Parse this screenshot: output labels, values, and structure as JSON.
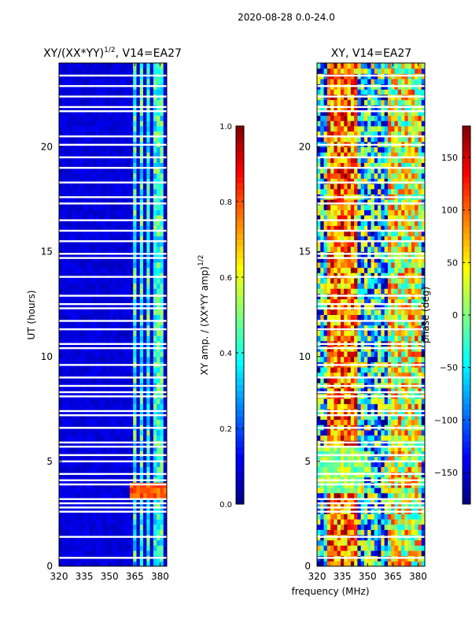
{
  "figure": {
    "suptitle": "2020-08-28 0.0-24.0",
    "xlabel": "frequency (MHz)"
  },
  "colors": {
    "jet_stops": [
      "#00007f",
      "#0000ff",
      "#007fff",
      "#00ffff",
      "#7fff7f",
      "#ffff00",
      "#ff7f00",
      "#ff0000",
      "#7f0000"
    ],
    "gap": "#ffffff",
    "axis": "#000000"
  },
  "chart_data": [
    {
      "type": "heatmap",
      "title_prefix": "XY/(XX*YY)",
      "title_exponent": "1/2",
      "title_suffix": ", V14=EA27",
      "xlabel": "",
      "ylabel": "UT (hours)",
      "xlim": [
        320,
        384
      ],
      "ylim": [
        0,
        24
      ],
      "xticks": [
        320,
        335,
        350,
        365,
        380
      ],
      "yticks": [
        0,
        5,
        10,
        15,
        20
      ],
      "colorbar": {
        "label_prefix": "XY amp. / (XX*YY amp)",
        "label_exponent": "1/2",
        "range": [
          0.0,
          1.0
        ],
        "ticks": [
          "0.0",
          "0.2",
          "0.4",
          "0.6",
          "0.8",
          "1.0"
        ],
        "tick_values": [
          0.0,
          0.2,
          0.4,
          0.6,
          0.8,
          1.0
        ]
      },
      "pattern": "amplitude",
      "flagged_hours": [
        0.4,
        1.4,
        2.6,
        2.8,
        3.0,
        3.2,
        3.9,
        4.1,
        4.4,
        5.0,
        5.3,
        5.7,
        5.9,
        6.6,
        7.2,
        7.4,
        8.1,
        8.3,
        8.6,
        9.0,
        9.6,
        10.4,
        10.6,
        11.3,
        11.7,
        12.3,
        12.5,
        12.9,
        13.8,
        14.7,
        14.9,
        15.5,
        16.0,
        16.5,
        17.3,
        17.6,
        18.3,
        19.0,
        19.5,
        20.1,
        20.5,
        21.7,
        21.9,
        22.4,
        22.9,
        23.4
      ],
      "rfi_bands_mhz": [
        [
          363.5,
          365.5
        ],
        [
          367.5,
          369.5
        ],
        [
          371.5,
          373.5
        ],
        [
          375.5,
          377
        ],
        [
          379,
          381
        ]
      ],
      "highlight": {
        "hours": [
          3.2,
          3.9
        ],
        "value": 0.85
      }
    },
    {
      "type": "heatmap",
      "title": "XY, V14=EA27",
      "xlabel": "",
      "ylabel": "",
      "xlim": [
        320,
        384
      ],
      "ylim": [
        0,
        24
      ],
      "xticks": [
        320,
        335,
        350,
        365,
        380
      ],
      "yticks": [
        0,
        5,
        10,
        15,
        20
      ],
      "colorbar": {
        "label": "phase (deg)",
        "range": [
          -180,
          180
        ],
        "ticks": [
          "−150",
          "−100",
          "−50",
          "0",
          "50",
          "100",
          "150"
        ],
        "tick_values": [
          -150,
          -100,
          -50,
          0,
          50,
          100,
          150
        ]
      },
      "pattern": "phase",
      "flagged_hours": [
        0.4,
        1.4,
        2.6,
        2.8,
        3.0,
        3.2,
        3.9,
        4.1,
        4.4,
        5.0,
        5.3,
        5.7,
        5.9,
        6.6,
        7.2,
        7.4,
        8.1,
        8.3,
        8.6,
        9.0,
        9.6,
        10.4,
        10.6,
        11.3,
        11.7,
        12.3,
        12.5,
        12.9,
        13.8,
        14.7,
        14.9,
        15.5,
        16.0,
        16.5,
        17.3,
        17.6,
        18.3,
        19.0,
        19.5,
        20.1,
        20.5,
        21.7,
        21.9,
        22.4,
        22.9,
        23.4
      ],
      "rfi_bands_mhz": [
        [
          363,
          382
        ]
      ],
      "high_phase_band_mhz": [
        327,
        343
      ]
    }
  ]
}
